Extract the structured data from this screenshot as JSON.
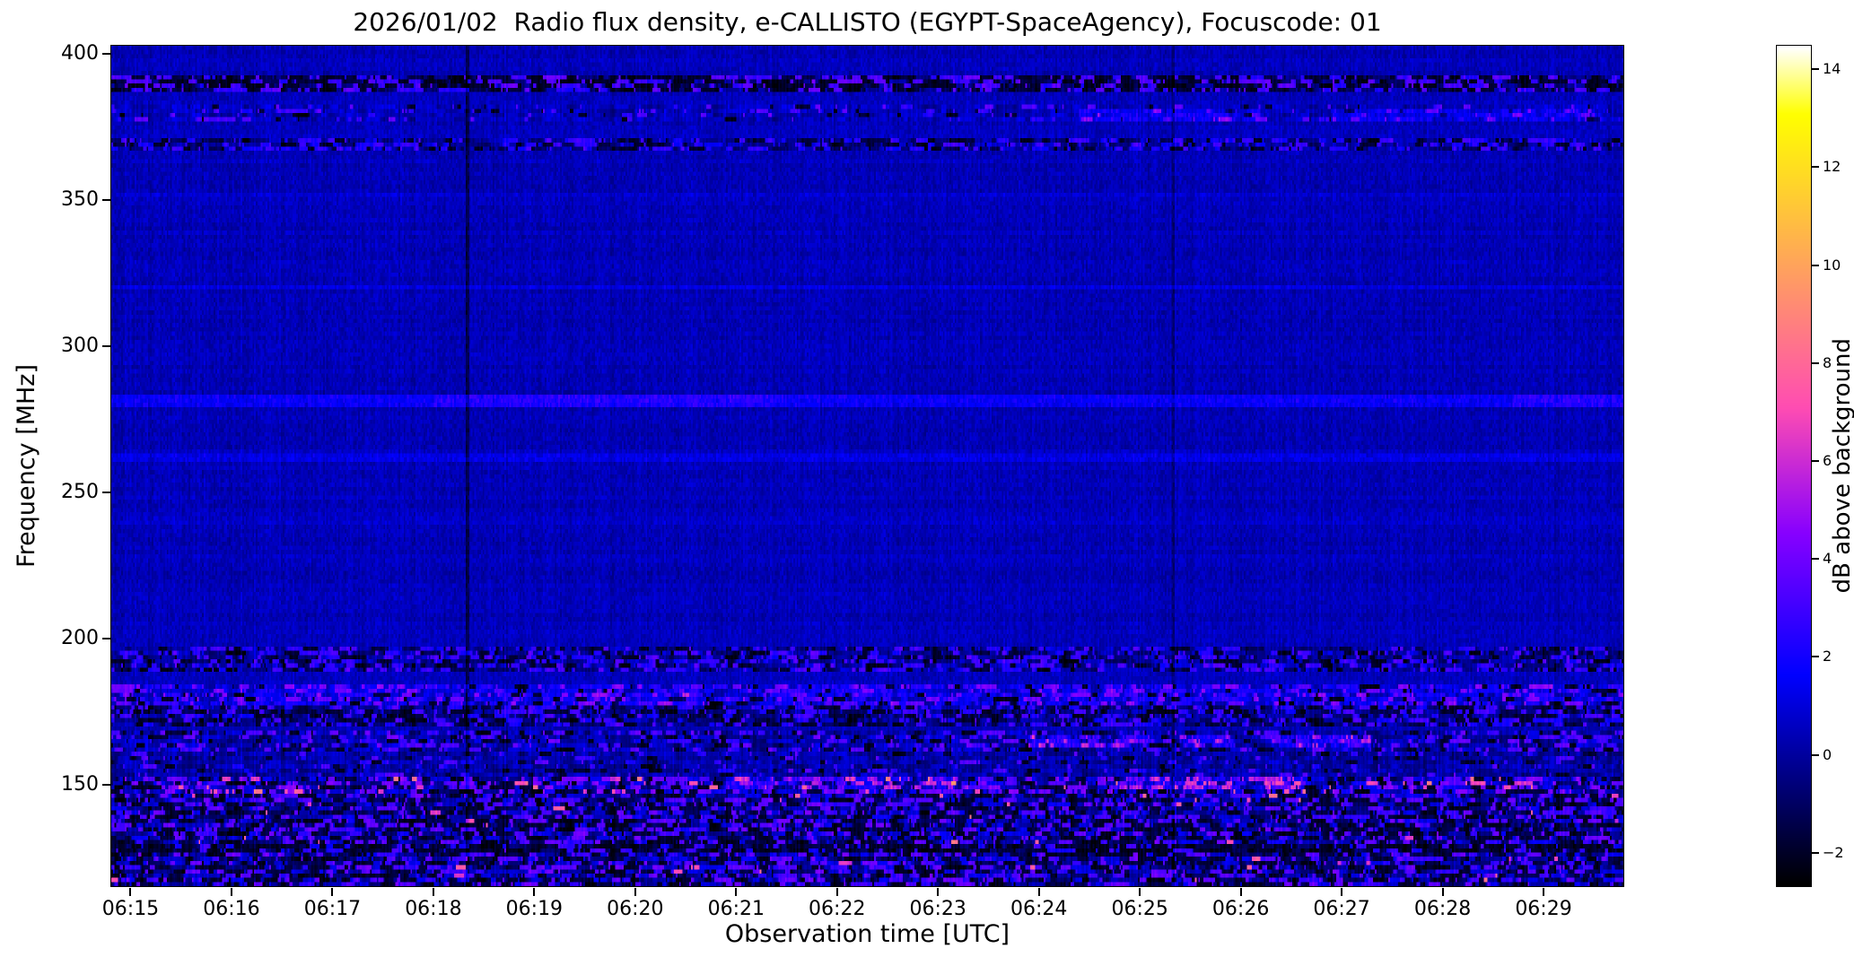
{
  "chart_data": {
    "type": "heatmap",
    "title": "2026/01/02  Radio flux density, e-CALLISTO (EGYPT-SpaceAgency), Focuscode: 01",
    "xlabel": "Observation time [UTC]",
    "ylabel": "Frequency [MHz]",
    "colorbar_label": "dB above background",
    "x_axis": {
      "unit": "UTC time as minutes after 06:00",
      "min": 14.8,
      "max": 29.8,
      "ticks": [
        {
          "value": 15,
          "label": "06:15"
        },
        {
          "value": 16,
          "label": "06:16"
        },
        {
          "value": 17,
          "label": "06:17"
        },
        {
          "value": 18,
          "label": "06:18"
        },
        {
          "value": 19,
          "label": "06:19"
        },
        {
          "value": 20,
          "label": "06:20"
        },
        {
          "value": 21,
          "label": "06:21"
        },
        {
          "value": 22,
          "label": "06:22"
        },
        {
          "value": 23,
          "label": "06:23"
        },
        {
          "value": 24,
          "label": "06:24"
        },
        {
          "value": 25,
          "label": "06:25"
        },
        {
          "value": 26,
          "label": "06:26"
        },
        {
          "value": 27,
          "label": "06:27"
        },
        {
          "value": 28,
          "label": "06:28"
        },
        {
          "value": 29,
          "label": "06:29"
        }
      ]
    },
    "y_axis": {
      "unit": "MHz",
      "min": 115,
      "max": 403,
      "ticks": [
        {
          "value": 400,
          "label": "400"
        },
        {
          "value": 350,
          "label": "350"
        },
        {
          "value": 300,
          "label": "300"
        },
        {
          "value": 250,
          "label": "250"
        },
        {
          "value": 200,
          "label": "200"
        },
        {
          "value": 150,
          "label": "150"
        }
      ]
    },
    "colorbar": {
      "min": -2.7,
      "max": 14.5,
      "colormap": "gnuplot2",
      "ticks": [
        {
          "value": 14,
          "label": "14"
        },
        {
          "value": 12,
          "label": "12"
        },
        {
          "value": 10,
          "label": "10"
        },
        {
          "value": 8,
          "label": "8"
        },
        {
          "value": 6,
          "label": "6"
        },
        {
          "value": 4,
          "label": "4"
        },
        {
          "value": 2,
          "label": "2"
        },
        {
          "value": 0,
          "label": "0"
        },
        {
          "value": -2,
          "label": "−2"
        }
      ]
    },
    "background_db": 0.4,
    "seed": 20260102,
    "bands": [
      {
        "lo": 387.5,
        "hi": 392.5,
        "base": -0.8,
        "noise": 1.2,
        "speckle_p": 0.3,
        "speckle_db": 2.2,
        "black_p": 0.38
      },
      {
        "lo": 377.5,
        "hi": 382.5,
        "base": 0.45,
        "noise": 0.7,
        "speckle_p": 0.1,
        "speckle_db": 2.2,
        "black_p": 0.04
      },
      {
        "lo": 366.5,
        "hi": 371.5,
        "base": -0.2,
        "noise": 1.0,
        "speckle_p": 0.3,
        "speckle_db": 1.6,
        "black_p": 0.18
      },
      {
        "lo": 188.0,
        "hi": 196.5,
        "base": -0.1,
        "noise": 1.1,
        "speckle_p": 0.28,
        "speckle_db": 1.9,
        "black_p": 0.2
      },
      {
        "lo": 176.5,
        "hi": 184.0,
        "base": 1.4,
        "noise": 1.3,
        "speckle_p": 0.22,
        "speckle_db": 3.2,
        "black_p": 0.1
      },
      {
        "lo": 170.0,
        "hi": 176.5,
        "base": -0.5,
        "noise": 1.1,
        "speckle_p": 0.28,
        "speckle_db": 1.8,
        "black_p": 0.26
      },
      {
        "lo": 161.0,
        "hi": 169.0,
        "base": 0.2,
        "noise": 1.0,
        "speckle_p": 0.2,
        "speckle_db": 2.4,
        "black_p": 0.14
      },
      {
        "lo": 153.0,
        "hi": 161.0,
        "base": 0.1,
        "noise": 0.8,
        "speckle_p": 0.1,
        "speckle_db": 2.0,
        "black_p": 0.08
      },
      {
        "lo": 146.5,
        "hi": 153.0,
        "base": 0.4,
        "noise": 1.5,
        "speckle_p": 0.28,
        "speckle_db": 3.0,
        "black_p": 0.2,
        "pink_p": 0.035,
        "pink_db": 6.0
      },
      {
        "lo": 126.0,
        "hi": 129.0,
        "base": -1.6,
        "noise": 1.0,
        "speckle_p": 0.16,
        "speckle_db": 1.6,
        "black_p": 0.42
      },
      {
        "lo": 115.0,
        "hi": 146.5,
        "base": -0.2,
        "noise": 1.8,
        "speckle_p": 0.24,
        "speckle_db": 2.5,
        "black_p": 0.24,
        "pink_p": 0.01,
        "pink_db": 6.0
      }
    ],
    "lines": [
      {
        "f": 352,
        "hw": 1.0,
        "boost": 0.7
      },
      {
        "f": 320,
        "hw": 1.2,
        "boost": 0.9
      },
      {
        "f": 281,
        "hw": 1.8,
        "boost": 1.5
      },
      {
        "f": 262,
        "hw": 1.4,
        "boost": 0.9
      },
      {
        "f": 240,
        "hw": 1.2,
        "boost": 0.4
      },
      {
        "f": 214,
        "hw": 1.2,
        "boost": 0.35
      }
    ],
    "patches": [
      {
        "t0": 18.0,
        "t1": 21.4,
        "lo": 279.0,
        "hi": 283.5,
        "db": 0.9
      },
      {
        "t0": 28.7,
        "t1": 29.8,
        "lo": 279.0,
        "hi": 283.5,
        "db": 1.0
      },
      {
        "t0": 24.4,
        "t1": 26.2,
        "lo": 377.5,
        "hi": 382.0,
        "db": 1.7
      },
      {
        "t0": 26.9,
        "t1": 29.6,
        "lo": 377.5,
        "hi": 382.0,
        "db": 1.4
      },
      {
        "t0": 23.9,
        "t1": 25.1,
        "lo": 163.0,
        "hi": 167.5,
        "db": 3.2
      },
      {
        "t0": 25.4,
        "t1": 25.95,
        "lo": 163.0,
        "hi": 167.5,
        "db": 2.8
      },
      {
        "t0": 26.3,
        "t1": 27.3,
        "lo": 163.0,
        "hi": 167.5,
        "db": 3.2
      },
      {
        "t0": 20.9,
        "t1": 23.3,
        "lo": 147.5,
        "hi": 152.0,
        "db": 2.6
      },
      {
        "t0": 24.8,
        "t1": 26.6,
        "lo": 147.5,
        "hi": 152.0,
        "db": 3.0
      },
      {
        "t0": 19.5,
        "t1": 20.6,
        "lo": 176.5,
        "hi": 181.0,
        "db": 1.2
      }
    ],
    "vertical_lines": [
      {
        "t": 18.33,
        "hw": 0.018,
        "delta": -1.8
      },
      {
        "t": 25.33,
        "hw": 0.018,
        "delta": -0.9
      }
    ]
  }
}
